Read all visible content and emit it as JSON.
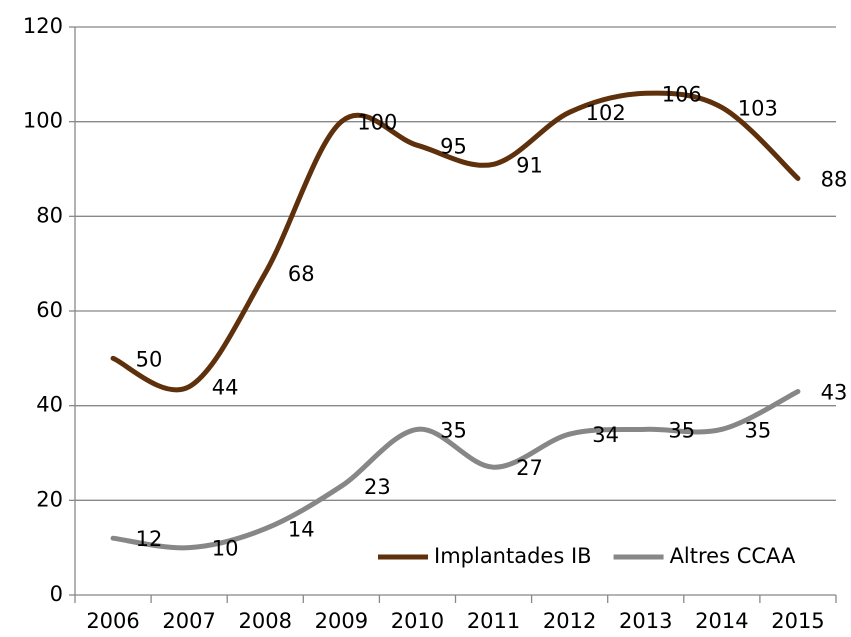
{
  "chart_data": {
    "type": "line",
    "categories": [
      "2006",
      "2007",
      "2008",
      "2009",
      "2010",
      "2011",
      "2012",
      "2013",
      "2014",
      "2015"
    ],
    "series": [
      {
        "name": "Implantades IB",
        "color": "#5e300b",
        "values": [
          50,
          44,
          68,
          100,
          95,
          91,
          102,
          106,
          103,
          88
        ]
      },
      {
        "name": "Altres CCAA",
        "color": "#878787",
        "values": [
          12,
          10,
          14,
          23,
          35,
          27,
          34,
          35,
          35,
          43
        ]
      }
    ],
    "ylim": [
      0,
      120
    ],
    "yticks": [
      0,
      20,
      40,
      60,
      80,
      100,
      120
    ],
    "grid": true,
    "legend": "bottom-right",
    "smooth": true
  }
}
